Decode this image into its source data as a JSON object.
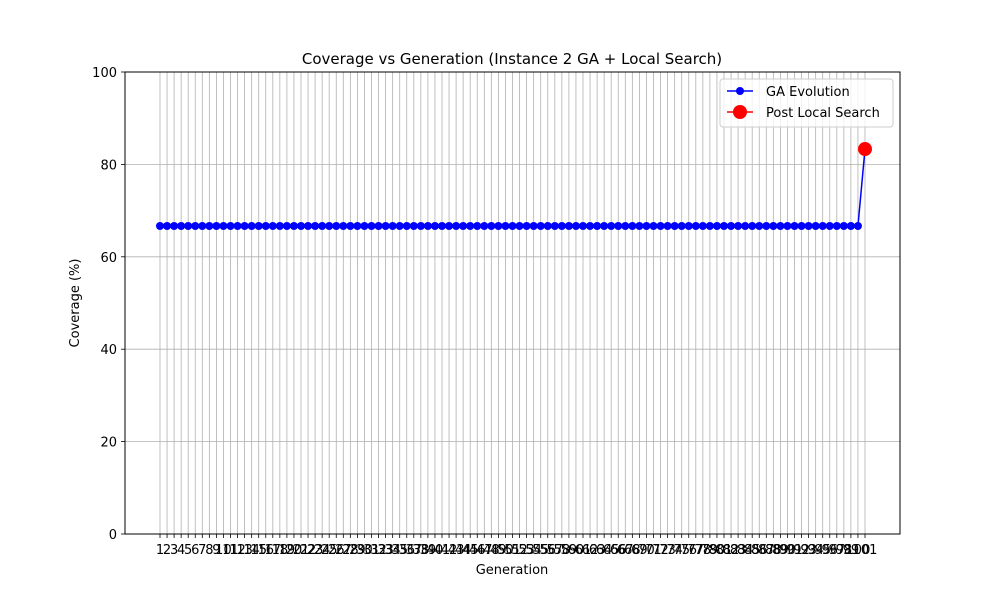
{
  "chart_data": {
    "type": "line",
    "title": "Coverage vs Generation (Instance 2 GA + Local Search)",
    "xlabel": "Generation",
    "ylabel": "Coverage (%)",
    "xlim": [
      1,
      101
    ],
    "ylim": [
      0,
      100
    ],
    "y_ticks": [
      0,
      20,
      40,
      60,
      80,
      100
    ],
    "grid": true,
    "legend_position": "top-right",
    "series": [
      {
        "name": "GA Evolution",
        "color": "#0000ff",
        "marker": "circle",
        "x_start": 1,
        "x_end": 100,
        "y_constant": 66.67,
        "final_segment_to": [
          101,
          83.33
        ]
      },
      {
        "name": "Post Local Search",
        "color": "#ff0000",
        "marker": "circle",
        "x": [
          101
        ],
        "y": [
          83.33
        ]
      }
    ]
  }
}
